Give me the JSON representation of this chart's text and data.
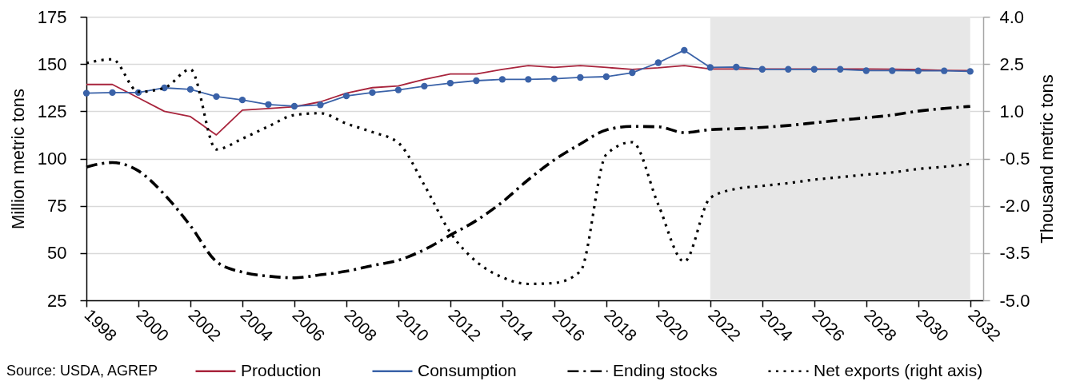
{
  "chart_data": {
    "type": "line",
    "x": [
      1998,
      1999,
      2000,
      2001,
      2002,
      2003,
      2004,
      2005,
      2006,
      2007,
      2008,
      2009,
      2010,
      2011,
      2012,
      2013,
      2014,
      2015,
      2016,
      2017,
      2018,
      2019,
      2020,
      2021,
      2022,
      2023,
      2024,
      2025,
      2026,
      2027,
      2028,
      2029,
      2030,
      2031,
      2032
    ],
    "xlim": [
      1998,
      2032.5
    ],
    "xticks": [
      1998,
      2000,
      2002,
      2004,
      2006,
      2008,
      2010,
      2012,
      2014,
      2016,
      2018,
      2020,
      2022,
      2024,
      2026,
      2028,
      2030,
      2032
    ],
    "ylabel": "Million metric tons",
    "ylim": [
      25,
      175
    ],
    "yticks": [
      25,
      50,
      75,
      100,
      125,
      150,
      175
    ],
    "y2label": "Thousand metric tons",
    "y2lim": [
      -5,
      4
    ],
    "y2ticks": [
      {
        "value": -5,
        "label": "-5.0"
      },
      -3.5,
      {
        "value": -2,
        "label": "-2.0"
      },
      -0.5,
      {
        "value": 1,
        "label": "1.0"
      },
      2.5,
      {
        "value": 4,
        "label": "4.0"
      }
    ],
    "grid": "y",
    "legend": "bottom",
    "bands": [
      {
        "axis": "x",
        "from": 2022,
        "to": 2032,
        "color": "#e7e7e7"
      }
    ],
    "annotations": [
      "Source: USDA, AGREP"
    ],
    "series": [
      {
        "name": "Production",
        "color": "#a8243c",
        "line_style": "solid",
        "values": [
          139.2,
          139.2,
          132.1,
          125.0,
          122.2,
          112.5,
          125.6,
          126.5,
          127.4,
          130.0,
          134.6,
          137.5,
          138.4,
          141.9,
          144.7,
          144.7,
          147.2,
          149.2,
          148.2,
          149.2,
          148.2,
          147.2,
          148.0,
          149.2,
          147.4,
          147.4,
          147.4,
          147.4,
          147.4,
          147.4,
          147.4,
          147.3,
          147.0,
          146.6,
          146.5
        ]
      },
      {
        "name": "Consumption",
        "color": "#3a62a8",
        "line_style": "solid",
        "marker": "circle",
        "values": [
          134.6,
          134.9,
          134.9,
          137.4,
          136.6,
          132.8,
          131.0,
          128.6,
          127.7,
          128.4,
          133.1,
          134.9,
          136.3,
          138.3,
          139.9,
          141.2,
          141.9,
          141.9,
          142.2,
          142.9,
          143.3,
          145.4,
          150.7,
          157.3,
          148.2,
          148.4,
          147.2,
          147.2,
          147.2,
          147.2,
          146.5,
          146.5,
          146.4,
          146.4,
          146.1
        ]
      },
      {
        "name": "Ending stocks",
        "color": "#000000",
        "line_style": "dashdot",
        "values": [
          95.5,
          97.9,
          93.5,
          81.0,
          64.5,
          45.5,
          39.9,
          37.8,
          36.9,
          38.5,
          40.4,
          43.4,
          46.2,
          51.8,
          59.5,
          67.2,
          77.0,
          88.8,
          99.3,
          107.7,
          115.1,
          117.0,
          116.8,
          113.7,
          115.3,
          115.8,
          116.5,
          117.5,
          118.9,
          120.3,
          121.6,
          123.0,
          125.1,
          126.5,
          127.6
        ]
      },
      {
        "name": "Net exports (right axis)",
        "color": "#000000",
        "line_style": "dotted",
        "axis": "y2",
        "values": [
          2.53,
          2.65,
          1.62,
          1.74,
          2.33,
          -0.21,
          0.13,
          0.52,
          0.88,
          0.94,
          0.61,
          0.34,
          0.0,
          -1.34,
          -2.85,
          -3.77,
          -4.27,
          -4.48,
          -4.45,
          -4.08,
          -0.37,
          0.02,
          -1.96,
          -3.77,
          -1.75,
          -1.46,
          -1.37,
          -1.28,
          -1.17,
          -1.09,
          -1.01,
          -0.94,
          -0.83,
          -0.76,
          -0.67
        ]
      }
    ]
  }
}
